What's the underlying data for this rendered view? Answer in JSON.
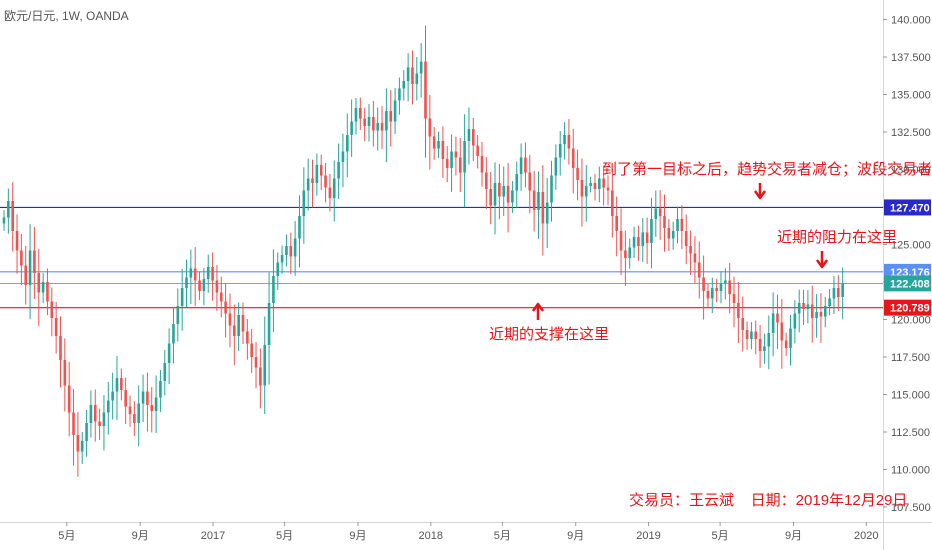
{
  "chart_data": {
    "type": "candlestick",
    "symbol_label": "欧元/日元, 1W, OANDA",
    "ylim": [
      106.5,
      141.3
    ],
    "y_ticks": [
      107.5,
      110.0,
      112.5,
      115.0,
      117.5,
      120.0,
      122.5,
      125.0,
      127.5,
      130.0,
      132.5,
      135.0,
      137.5,
      140.0
    ],
    "y_tick_labels": [
      "107.500",
      "110.000",
      "112.500",
      "115.000",
      "117.500",
      "120.000",
      "122.500",
      "125.000",
      "127.500",
      "130.000",
      "132.500",
      "135.000",
      "137.500",
      "140.000"
    ],
    "x_ticks": [
      "5月",
      "9月",
      "2017",
      "5月",
      "9月",
      "2018",
      "5月",
      "9月",
      "2019",
      "5月",
      "9月",
      "2020"
    ],
    "x_range": [
      "2016-01-10",
      "2020-01-29"
    ],
    "x_tick_dates": [
      "2016-05-01",
      "2016-09-01",
      "2017-01-01",
      "2017-05-01",
      "2017-09-01",
      "2018-01-01",
      "2018-05-01",
      "2018-09-01",
      "2019-01-01",
      "2019-05-01",
      "2019-09-01",
      "2020-01-01"
    ],
    "grid": false,
    "colors": {
      "up": "#26a69a",
      "down": "#ef5350"
    },
    "price_levels": [
      {
        "name": "blue-line",
        "value": 127.47,
        "label": "127.470",
        "color": "#2929c9"
      },
      {
        "name": "light-blue-line",
        "value": 123.176,
        "label": "123.176",
        "color": "#5b8ff9"
      },
      {
        "name": "current-price-line",
        "value": 122.408,
        "label": "122.408",
        "color": "#26a69a"
      },
      {
        "name": "red-line",
        "value": 120.789,
        "label": "120.789",
        "color": "#e8141b"
      }
    ],
    "annotations": [
      {
        "text": "到了第一目标之后，趋势交易者减仓；波段交易者"
      },
      {
        "text": "近期的阻力在这里"
      },
      {
        "text": "近期的支撑在这里"
      },
      {
        "text": "交易员：王云斌    日期：2019年12月29日"
      }
    ],
    "weekly_closes": [
      126.8,
      127.9,
      125.9,
      124.6,
      123.6,
      122.3,
      124.6,
      123.1,
      121.8,
      122.5,
      121.2,
      120.1,
      118.9,
      117.3,
      115.6,
      113.8,
      112.3,
      111.2,
      111.9,
      113.1,
      114.3,
      113.2,
      112.9,
      113.8,
      114.6,
      115.2,
      116.1,
      115.3,
      114.2,
      113.7,
      113.1,
      114.4,
      115.2,
      114.3,
      113.9,
      114.8,
      115.9,
      117.1,
      118.4,
      119.7,
      120.9,
      122.1,
      122.8,
      123.4,
      122.6,
      121.9,
      122.7,
      123.5,
      122.6,
      121.8,
      121.2,
      120.4,
      119.6,
      118.9,
      120.3,
      119.2,
      118.4,
      117.5,
      116.8,
      115.6,
      118.3,
      121.1,
      122.9,
      123.8,
      124.3,
      124.9,
      124.2,
      125.4,
      126.9,
      128.6,
      129.4,
      129.1,
      130.3,
      129.6,
      128.8,
      128.1,
      129.4,
      130.5,
      131.2,
      132.3,
      133.2,
      134.1,
      133.4,
      132.9,
      133.5,
      132.6,
      133.1,
      132.6,
      133.9,
      133.2,
      134.6,
      135.4,
      135.9,
      136.8,
      135.7,
      136.4,
      137.2,
      133.4,
      132.2,
      131.4,
      131.9,
      130.7,
      130.1,
      131.2,
      130.8,
      129.8,
      131.9,
      132.7,
      131.6,
      130.9,
      129.8,
      128.7,
      127.6,
      129.1,
      128.2,
      128.9,
      127.8,
      128.6,
      129.7,
      130.8,
      129.8,
      128.6,
      127.3,
      128.5,
      126.4,
      127.8,
      129.6,
      130.8,
      131.7,
      132.3,
      131.4,
      130.1,
      129.3,
      128.2,
      128.9,
      129.1,
      128.7,
      129.4,
      128.8,
      128.6,
      126.9,
      125.9,
      124.6,
      124.1,
      124.8,
      125.5,
      124.9,
      125.8,
      125.1,
      126.7,
      127.4,
      126.9,
      126.1,
      125.4,
      125.9,
      126.7,
      125.9,
      124.9,
      124.4,
      123.8,
      122.8,
      121.9,
      121.4,
      122.1,
      121.9,
      122.4,
      122.6,
      121.7,
      121.1,
      120.1,
      119.3,
      118.7,
      119.2,
      118.7,
      117.9,
      118.2,
      119.1,
      120.4,
      119.8,
      118.6,
      118.1,
      119.4,
      120.4,
      121.1,
      120.7,
      121.0,
      120.1,
      120.5,
      120.2,
      120.9,
      121.4,
      122.1,
      121.5,
      122.4
    ]
  }
}
